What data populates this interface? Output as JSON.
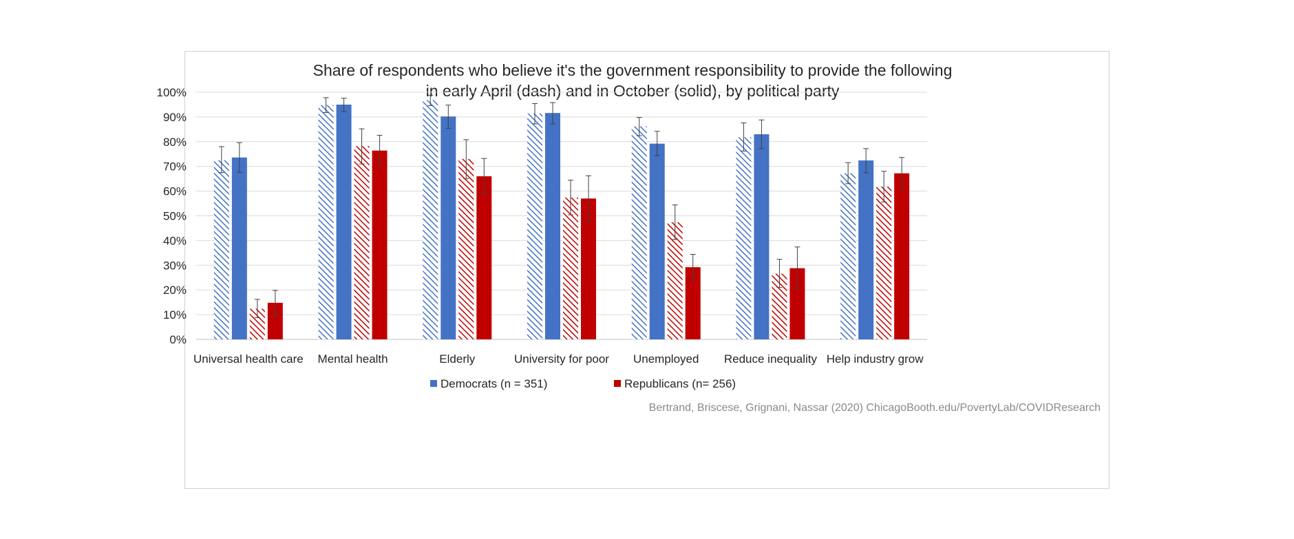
{
  "chart_data": {
    "type": "bar",
    "title": [
      "Share of respondents who believe it's the government responsibility to provide the following",
      "in early April (dash) and in October (solid), by political party"
    ],
    "categories": [
      "Universal health care",
      "Mental health",
      "Elderly",
      "University for poor",
      "Unemployed",
      "Reduce inequality",
      "Help industry grow"
    ],
    "ylim": [
      0,
      100
    ],
    "yticks": [
      0,
      10,
      20,
      30,
      40,
      50,
      60,
      70,
      80,
      90,
      100
    ],
    "ytick_labels": [
      "0%",
      "10%",
      "20%",
      "30%",
      "40%",
      "50%",
      "60%",
      "70%",
      "80%",
      "90%",
      "100%"
    ],
    "grid": true,
    "series": [
      {
        "name": "Democrats April",
        "party": "Democrats",
        "period": "April",
        "style": "dashed",
        "color": "#4472C4",
        "values": [
          72.5,
          94.8,
          96.8,
          91.4,
          86.2,
          81.8,
          67.2
        ],
        "error_low": [
          67.5,
          91.8,
          94.6,
          87.2,
          82.4,
          76.2,
          63.0
        ],
        "error_high": [
          78.0,
          97.8,
          98.8,
          95.4,
          89.8,
          87.6,
          71.5
        ]
      },
      {
        "name": "Democrats October",
        "party": "Democrats",
        "period": "October",
        "style": "solid",
        "color": "#4472C4",
        "values": [
          73.6,
          95.0,
          90.2,
          91.6,
          79.2,
          83.0,
          72.4
        ],
        "error_low": [
          67.6,
          92.2,
          85.4,
          87.2,
          74.4,
          77.2,
          67.4
        ],
        "error_high": [
          79.6,
          97.6,
          94.8,
          95.8,
          84.2,
          88.8,
          77.2
        ]
      },
      {
        "name": "Republicans April",
        "party": "Republicans",
        "period": "April",
        "style": "dashed",
        "color": "#C00000",
        "values": [
          12.4,
          78.2,
          73.0,
          57.4,
          47.4,
          26.6,
          61.8
        ],
        "error_low": [
          8.8,
          71.0,
          65.0,
          50.4,
          40.4,
          21.0,
          55.6
        ],
        "error_high": [
          16.2,
          85.2,
          80.8,
          64.4,
          54.4,
          32.4,
          68.0
        ]
      },
      {
        "name": "Republicans October",
        "party": "Republicans",
        "period": "October",
        "style": "solid",
        "color": "#C00000",
        "values": [
          14.8,
          76.4,
          66.0,
          57.0,
          29.2,
          28.8,
          67.2
        ],
        "error_low": [
          9.6,
          70.2,
          59.0,
          47.6,
          24.0,
          20.6,
          61.0
        ],
        "error_high": [
          19.8,
          82.6,
          73.2,
          66.2,
          34.4,
          37.4,
          73.6
        ]
      }
    ],
    "legend": [
      {
        "label": "Democrats (n = 351)",
        "color": "#4472C4"
      },
      {
        "label": "Republicans (n= 256)",
        "color": "#C00000"
      }
    ],
    "legend_position": "bottom",
    "source": "Bertrand, Briscese, Grignani, Nassar (2020) ChicagoBooth.edu/PovertyLab/COVIDResearch"
  }
}
